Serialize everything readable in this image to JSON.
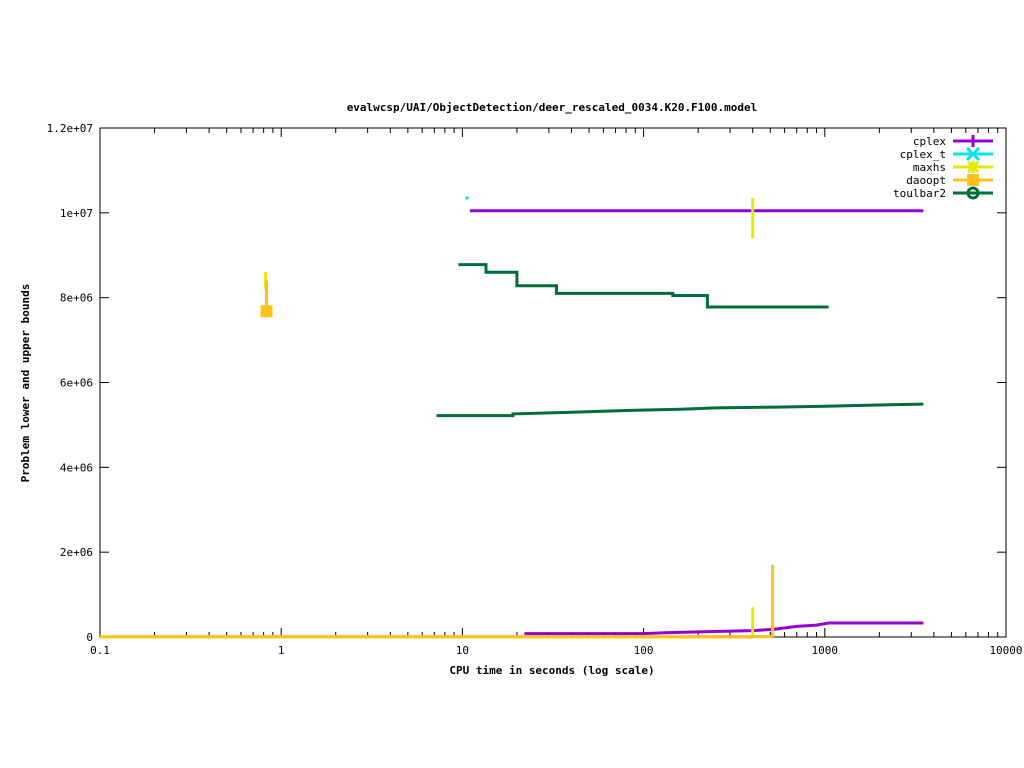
{
  "chart_data": {
    "type": "line",
    "title": "evalwcsp/UAI/ObjectDetection/deer_rescaled_0034.K20.F100.model",
    "xlabel": "CPU time in seconds (log scale)",
    "ylabel": "Problem lower and upper bounds",
    "x_scale": "log",
    "xlim": [
      0.1,
      10000
    ],
    "ylim": [
      0,
      12000000
    ],
    "x_ticks": [
      0.1,
      1,
      10,
      100,
      1000,
      10000
    ],
    "x_tick_labels": [
      "0.1",
      "1",
      "10",
      "100",
      "1000",
      "10000"
    ],
    "y_ticks": [
      0,
      2000000,
      4000000,
      6000000,
      8000000,
      10000000,
      12000000
    ],
    "y_tick_labels": [
      "0",
      "2e+06",
      "4e+06",
      "6e+06",
      "8e+06",
      "1e+07",
      "1.2e+07"
    ],
    "grid": false,
    "legend_position": "top-right",
    "series": [
      {
        "name": "cplex",
        "color": "#9400d3",
        "marker": "plus",
        "segments": [
          [
            [
              11,
              10050000
            ],
            [
              3500,
              10050000
            ]
          ],
          [
            [
              22,
              80000
            ],
            [
              100,
              80000
            ],
            [
              130,
              100000
            ],
            [
              200,
              120000
            ],
            [
              400,
              150000
            ],
            [
              520,
              180000
            ],
            [
              700,
              250000
            ],
            [
              900,
              280000
            ],
            [
              1050,
              330000
            ],
            [
              3500,
              330000
            ]
          ]
        ]
      },
      {
        "name": "cplex_t",
        "color": "#00e5ee",
        "marker": "cross",
        "segments": [],
        "points": [
          [
            10.6,
            10350000
          ]
        ]
      },
      {
        "name": "maxhs",
        "color": "#e6e600",
        "marker": "asterisk",
        "segments": [
          [
            [
              0.1,
              0
            ],
            [
              400,
              0
            ]
          ],
          [
            [
              0.82,
              8200000
            ],
            [
              0.82,
              8600000
            ]
          ],
          [
            [
              400,
              9400000
            ],
            [
              400,
              10350000
            ]
          ],
          [
            [
              400,
              0
            ],
            [
              400,
              700000
            ]
          ]
        ]
      },
      {
        "name": "daoopt",
        "color": "#ffc020",
        "marker": "square",
        "segments": [
          [
            [
              0.1,
              10000
            ],
            [
              515,
              10000
            ]
          ],
          [
            [
              0.83,
              7700000
            ],
            [
              0.83,
              8400000
            ]
          ],
          [
            [
              515,
              0
            ],
            [
              515,
              1700000
            ]
          ]
        ],
        "points": [
          [
            0.83,
            7680000
          ]
        ]
      },
      {
        "name": "toulbar2",
        "color": "#006d3a",
        "marker": "circle",
        "segments": [
          [
            [
              9.5,
              8780000
            ],
            [
              13.5,
              8780000
            ],
            [
              13.5,
              8600000
            ],
            [
              20,
              8600000
            ],
            [
              20,
              8280000
            ],
            [
              33,
              8280000
            ],
            [
              33,
              8100000
            ],
            [
              145,
              8100000
            ],
            [
              145,
              8050000
            ],
            [
              225,
              8050000
            ],
            [
              225,
              7780000
            ],
            [
              1050,
              7780000
            ]
          ],
          [
            [
              7.2,
              5220000
            ],
            [
              19,
              5220000
            ],
            [
              19,
              5260000
            ],
            [
              40,
              5300000
            ],
            [
              80,
              5340000
            ],
            [
              160,
              5370000
            ],
            [
              250,
              5400000
            ],
            [
              550,
              5420000
            ],
            [
              1000,
              5440000
            ],
            [
              2000,
              5470000
            ],
            [
              3500,
              5490000
            ]
          ]
        ]
      }
    ]
  }
}
